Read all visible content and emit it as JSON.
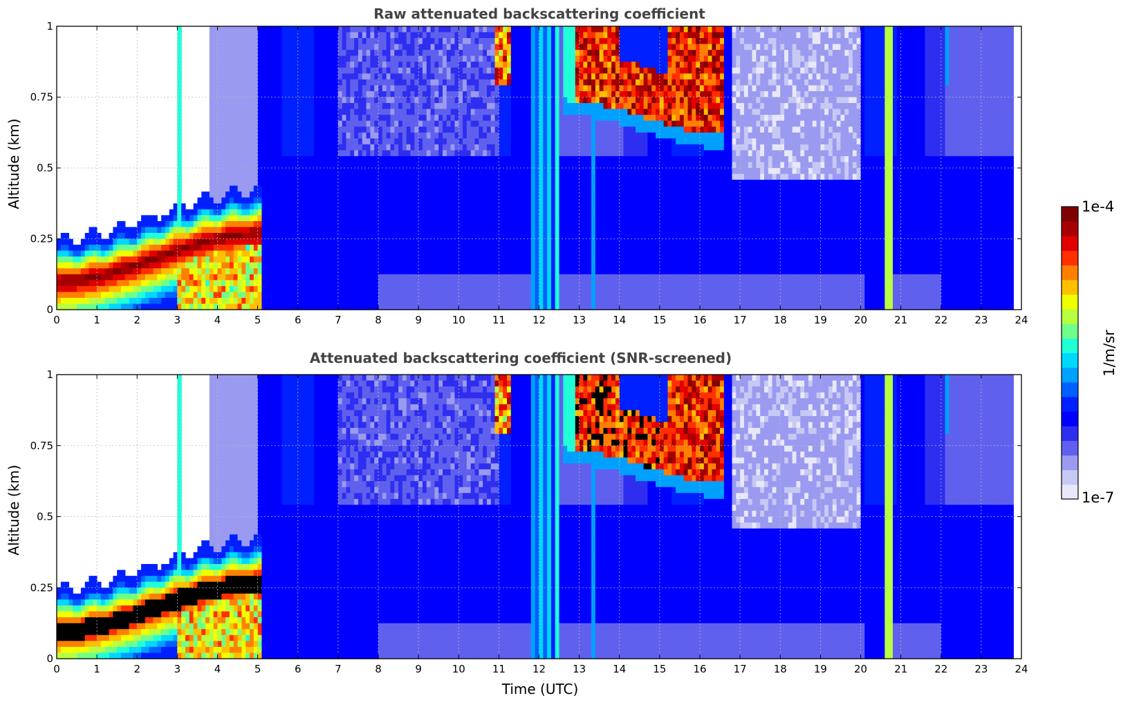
{
  "chart_data": [
    {
      "type": "heatmap",
      "id": "raw",
      "title": "Raw attenuated backscattering coefficient",
      "xlabel": "",
      "ylabel": "Altitude (km)",
      "xlim": [
        0,
        24
      ],
      "ylim": [
        0,
        1
      ],
      "x_ticks": [
        "0",
        "1",
        "2",
        "3",
        "4",
        "5",
        "6",
        "7",
        "8",
        "9",
        "10",
        "11",
        "12",
        "13",
        "14",
        "15",
        "16",
        "17",
        "18",
        "19",
        "20",
        "21",
        "22",
        "23",
        "24"
      ],
      "y_ticks": [
        "0",
        "0.25",
        "0.5",
        "0.75",
        "1"
      ],
      "grid": true,
      "data_end_hour": 23.75,
      "features": [
        {
          "name": "boundary-layer aerosol",
          "hours": [
            0,
            5
          ],
          "base_km": [
            0.1,
            0.3
          ],
          "top_km": [
            0.25,
            0.43
          ],
          "level": 1.0
        },
        {
          "name": "cloud 11h",
          "hours": [
            10.85,
            11.35
          ],
          "base_km": 0.82,
          "top_km": 1.0,
          "level": 0.7
        },
        {
          "name": "precipitation column 12h",
          "hours": [
            11.8,
            12.5
          ],
          "base_km": 0.0,
          "top_km": 1.0,
          "level": 0.45
        },
        {
          "name": "cloud layer 13-16.5h",
          "hours": [
            12.6,
            16.5
          ],
          "base_km": [
            0.72,
            0.62
          ],
          "top_km": 1.0,
          "level": 0.9
        },
        {
          "name": "precipitation column 20.7h",
          "hours": [
            20.6,
            20.8
          ],
          "base_km": 0.0,
          "top_km": 1.0,
          "level": 0.6
        }
      ]
    },
    {
      "type": "heatmap",
      "id": "screened",
      "title": "Attenuated backscattering coefficient (SNR-screened)",
      "xlabel": "Time (UTC)",
      "ylabel": "Altitude (km)",
      "xlim": [
        0,
        24
      ],
      "ylim": [
        0,
        1
      ],
      "x_ticks": [
        "0",
        "1",
        "2",
        "3",
        "4",
        "5",
        "6",
        "7",
        "8",
        "9",
        "10",
        "11",
        "12",
        "13",
        "14",
        "15",
        "16",
        "17",
        "18",
        "19",
        "20",
        "21",
        "22",
        "23",
        "24"
      ],
      "y_ticks": [
        "0",
        "0.25",
        "0.5",
        "0.75",
        "1"
      ],
      "grid": true,
      "data_end_hour": 23.75,
      "saturated_color": "#000000"
    }
  ],
  "colorbar": {
    "label": "1/m/sr",
    "max_label": "1e-4",
    "min_label": "1e-7",
    "colors": [
      "#e8e8fa",
      "#c8c8f5",
      "#9a9af0",
      "#6060ee",
      "#2e2ef0",
      "#0000ff",
      "#0020ff",
      "#0060ff",
      "#00a0ff",
      "#00d8ff",
      "#20ffd8",
      "#70ff88",
      "#b8ff40",
      "#f0ff00",
      "#ffc000",
      "#ff8000",
      "#ff3000",
      "#e00000",
      "#a80000",
      "#7f0000"
    ]
  }
}
